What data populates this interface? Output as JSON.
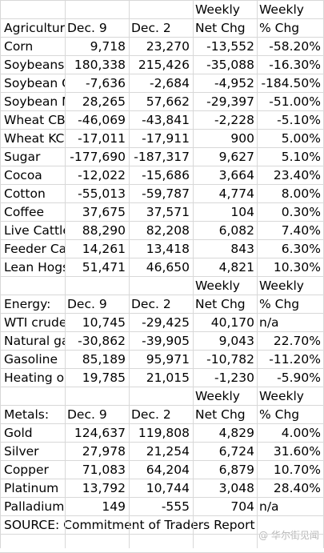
{
  "sections": [
    {
      "header_top": [
        "",
        "",
        "",
        "Weekly",
        "Weekly"
      ],
      "header": [
        "Agriculture:",
        "Dec. 9",
        "Dec. 2",
        "Net Chg",
        "% Chg"
      ],
      "rows": [
        [
          "Corn",
          "9,718",
          "23,270",
          "-13,552",
          "-58.20%"
        ],
        [
          "Soybeans",
          "180,338",
          "215,426",
          "-35,088",
          "-16.30%"
        ],
        [
          "Soybean Oil",
          "-7,636",
          "-2,684",
          "-4,952",
          "-184.50%"
        ],
        [
          "Soybean Meal",
          "28,265",
          "57,662",
          "-29,397",
          "-51.00%"
        ],
        [
          "Wheat CBOT",
          "-46,069",
          "-43,841",
          "-2,228",
          "-5.10%"
        ],
        [
          "Wheat KC",
          "-17,011",
          "-17,911",
          "900",
          "5.00%"
        ],
        [
          "Sugar",
          "-177,690",
          "-187,317",
          "9,627",
          "5.10%"
        ],
        [
          "Cocoa",
          "-12,022",
          "-15,686",
          "3,664",
          "23.40%"
        ],
        [
          "Cotton",
          "-55,013",
          "-59,787",
          "4,774",
          "8.00%"
        ],
        [
          "Coffee",
          "37,675",
          "37,571",
          "104",
          "0.30%"
        ],
        [
          "Live Cattle",
          "88,290",
          "82,208",
          "6,082",
          "7.40%"
        ],
        [
          "Feeder Cattle",
          "14,261",
          "13,418",
          "843",
          "6.30%"
        ],
        [
          "Lean Hogs",
          "51,471",
          "46,650",
          "4,821",
          "10.30%"
        ]
      ]
    },
    {
      "header_top": [
        "",
        "",
        "",
        "Weekly",
        "Weekly"
      ],
      "header": [
        "Energy:",
        "Dec. 9",
        "Dec. 2",
        "Net Chg",
        "% Chg"
      ],
      "rows": [
        [
          "WTI crude",
          "10,745",
          "-29,425",
          "40,170",
          "n/a"
        ],
        [
          "Natural gas",
          "-30,862",
          "-39,905",
          "9,043",
          "22.70%"
        ],
        [
          "Gasoline",
          "85,189",
          "95,971",
          "-10,782",
          "-11.20%"
        ],
        [
          "Heating oil",
          "19,785",
          "21,015",
          "-1,230",
          "-5.90%"
        ]
      ]
    },
    {
      "header_top": [
        "",
        "",
        "",
        "Weekly",
        "Weekly"
      ],
      "header": [
        "Metals:",
        "Dec. 9",
        "Dec. 2",
        "Net Chg",
        "% Chg"
      ],
      "rows": [
        [
          "Gold",
          "124,637",
          "119,808",
          "4,829",
          "4.00%"
        ],
        [
          "Silver",
          "27,978",
          "21,254",
          "6,724",
          "31.60%"
        ],
        [
          "Copper",
          "71,083",
          "64,204",
          "6,879",
          "10.70%"
        ],
        [
          "Platinum",
          "13,792",
          "10,744",
          "3,048",
          "28.40%"
        ],
        [
          "Palladium",
          "149",
          "-555",
          "704",
          "n/a"
        ]
      ]
    }
  ],
  "source": "SOURCE: Commitment of Traders Report",
  "watermark": "@ 华尔街见闻"
}
